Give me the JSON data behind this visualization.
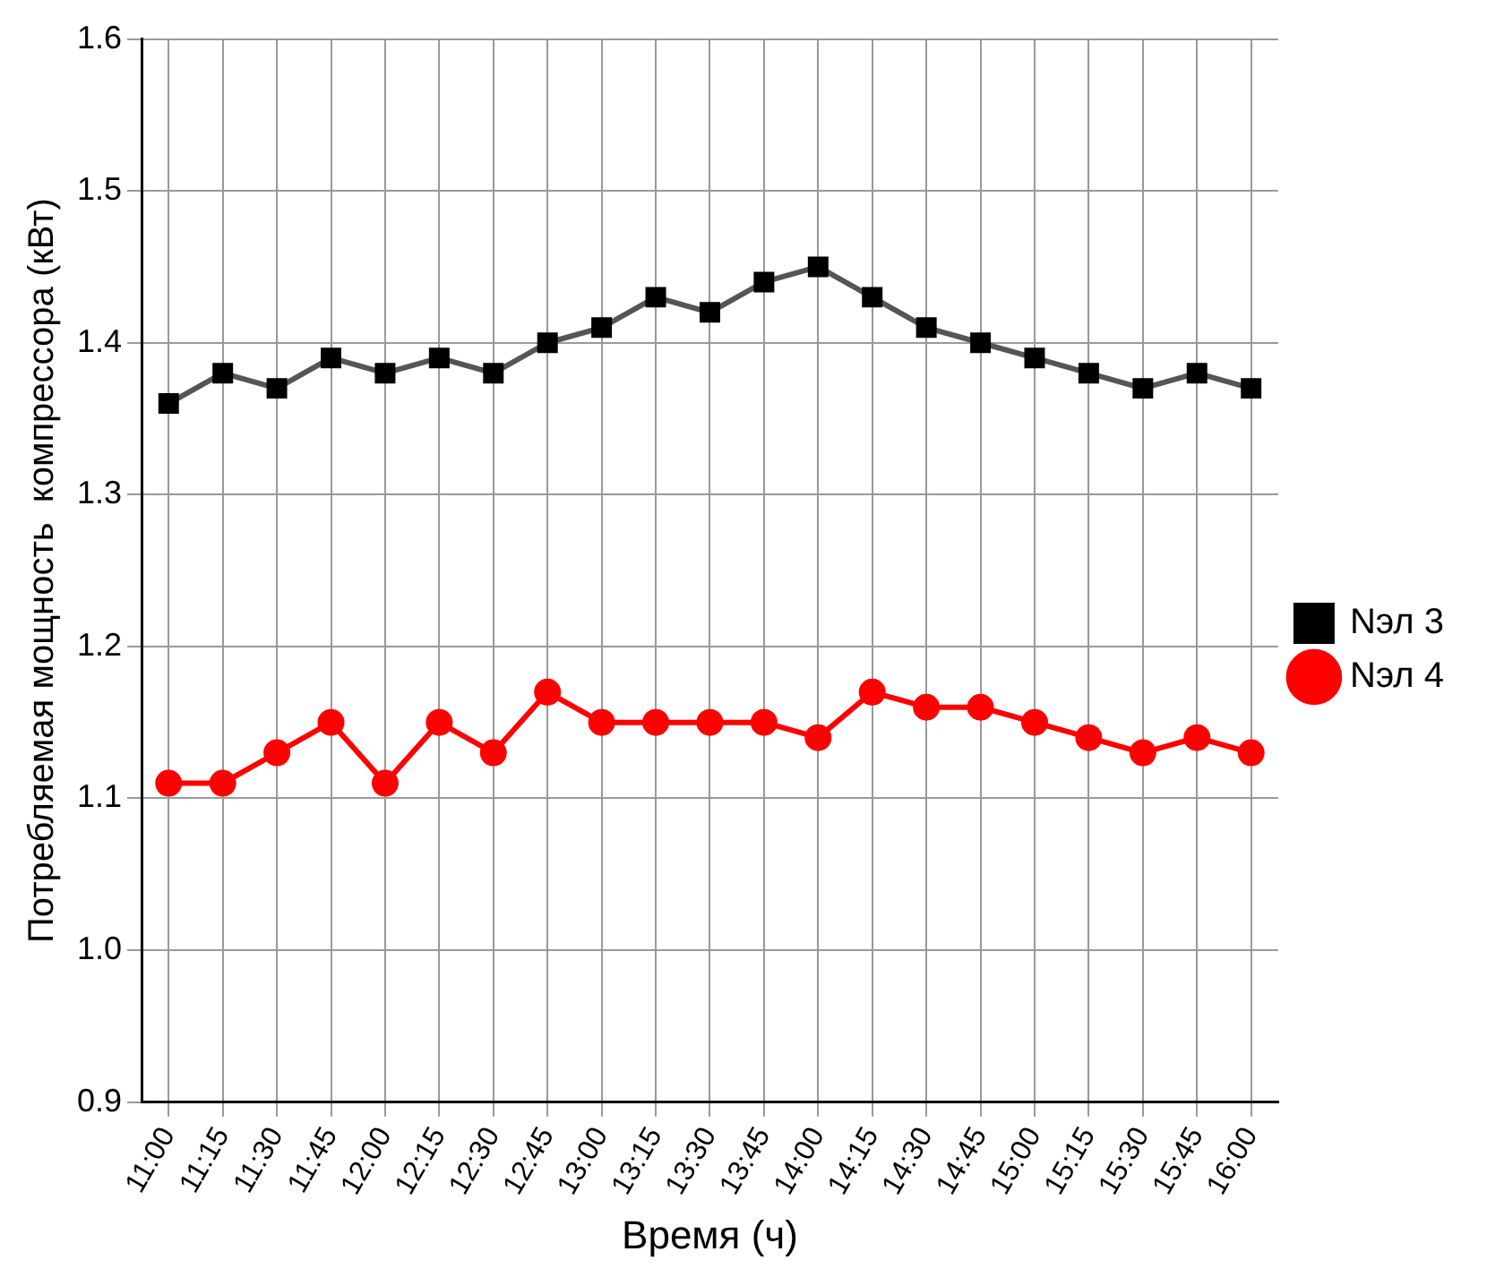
{
  "chart_data": {
    "type": "line",
    "xlabel": "Время (ч)",
    "ylabel": "Потребляемая мощность  компрессора (кВт)",
    "categories": [
      "11:00",
      "11:15",
      "11:30",
      "11:45",
      "12:00",
      "12:15",
      "12:30",
      "12:45",
      "13:00",
      "13:15",
      "13:30",
      "13:45",
      "14:00",
      "14:15",
      "14:30",
      "14:45",
      "15:00",
      "15:15",
      "15:30",
      "15:45",
      "16:00"
    ],
    "series": [
      {
        "name": "Nэл 3",
        "color": "#000000",
        "marker": "square",
        "values": [
          1.36,
          1.38,
          1.37,
          1.39,
          1.38,
          1.39,
          1.38,
          1.4,
          1.41,
          1.43,
          1.42,
          1.44,
          1.45,
          1.43,
          1.41,
          1.4,
          1.39,
          1.38,
          1.37,
          1.38,
          1.37
        ]
      },
      {
        "name": "Nэл 4",
        "color": "#ff0000",
        "marker": "circle",
        "values": [
          1.11,
          1.11,
          1.13,
          1.15,
          1.11,
          1.15,
          1.13,
          1.17,
          1.15,
          1.15,
          1.15,
          1.15,
          1.14,
          1.17,
          1.16,
          1.16,
          1.15,
          1.14,
          1.13,
          1.14,
          1.13
        ]
      }
    ],
    "ylim": [
      0.9,
      1.6
    ],
    "yticks": [
      0.9,
      {
        "value": 1,
        "label": "1.0"
      },
      1.1,
      1.2,
      1.3,
      1.4,
      1.5,
      1.6
    ],
    "grid": true,
    "legend": "right",
    "line_style": "solid"
  }
}
